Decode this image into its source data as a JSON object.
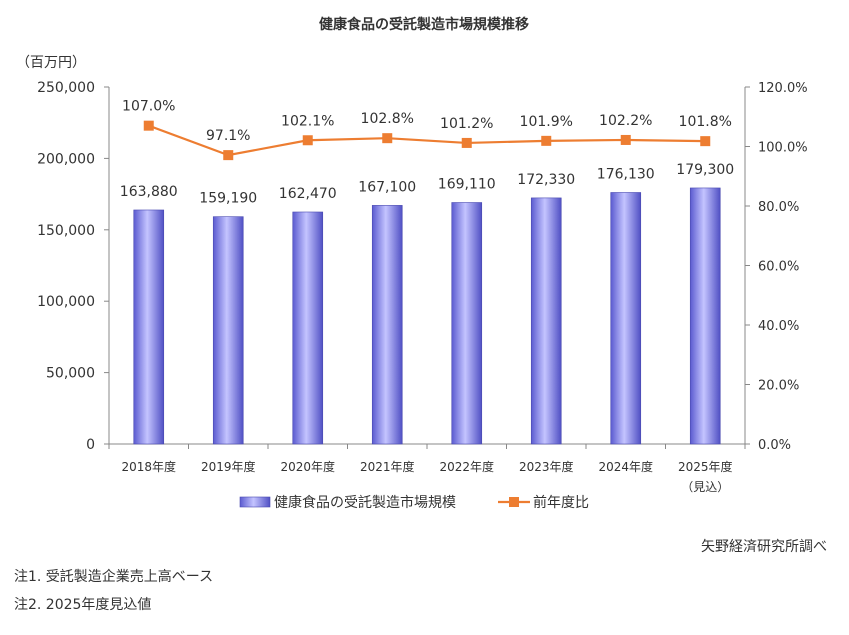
{
  "chart_data": {
    "type": "bar",
    "title": "健康食品の受託製造市場規模推移",
    "y_unit_label": "（百万円）",
    "categories": [
      "2018年度",
      "2019年度",
      "2020年度",
      "2021年度",
      "2022年度",
      "2023年度",
      "2024年度",
      "2025年度"
    ],
    "category_sublabels": [
      "",
      "",
      "",
      "",
      "",
      "",
      "",
      "（見込）"
    ],
    "series": [
      {
        "name": "健康食品の受託製造市場規模",
        "kind": "bar",
        "axis": "left",
        "color": "#8080e8",
        "values": [
          163880,
          159190,
          162470,
          167100,
          169110,
          172330,
          176130,
          179300
        ],
        "labels": [
          "163,880",
          "159,190",
          "162,470",
          "167,100",
          "169,110",
          "172,330",
          "176,130",
          "179,300"
        ]
      },
      {
        "name": "前年度比",
        "kind": "line",
        "axis": "right",
        "color": "#ed7d31",
        "values": [
          107.0,
          97.1,
          102.1,
          102.8,
          101.2,
          101.9,
          102.2,
          101.8
        ],
        "labels": [
          "107.0%",
          "97.1%",
          "102.1%",
          "102.8%",
          "101.2%",
          "101.9%",
          "102.2%",
          "101.8%"
        ]
      }
    ],
    "y_left": {
      "min": 0,
      "max": 250000,
      "ticks": [
        0,
        50000,
        100000,
        150000,
        200000,
        250000
      ],
      "tick_labels": [
        "0",
        "50,000",
        "100,000",
        "150,000",
        "200,000",
        "250,000"
      ]
    },
    "y_right": {
      "min": 0,
      "max": 120,
      "ticks": [
        0,
        20,
        40,
        60,
        80,
        100,
        120
      ],
      "tick_labels": [
        "0.0%",
        "20.0%",
        "40.0%",
        "60.0%",
        "80.0%",
        "100.0%",
        "120.0%"
      ]
    },
    "grid": false,
    "legend_position": "bottom"
  },
  "source": "矢野経済研究所調べ",
  "notes": [
    "注1. 受託製造企業売上高ベース",
    "注2. 2025年度見込値"
  ]
}
